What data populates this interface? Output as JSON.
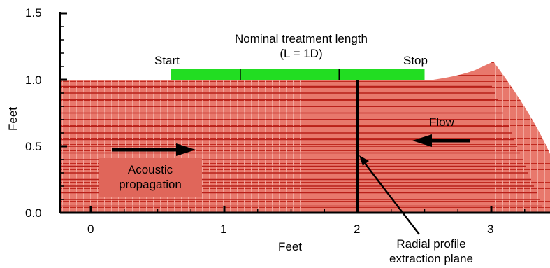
{
  "chart_data": {
    "type": "diagram",
    "xlabel": "Feet",
    "ylabel": "Feet",
    "xlim": [
      -0.25,
      3.6
    ],
    "ylim": [
      0.0,
      1.5
    ],
    "x_ticks": [
      "0",
      "1",
      "2",
      "3"
    ],
    "y_ticks": [
      "0.0",
      "0.5",
      "1.0",
      "1.5"
    ],
    "treatment_start_ft": 0.6,
    "treatment_stop_ft": 2.5,
    "treatment_dividers_ft": [
      1.12,
      1.86
    ],
    "extraction_plane_ft": 2.0,
    "colors": {
      "mesh": "#e0665a",
      "mesh_line": "#b8201a",
      "treatment_bar": "#22dd22",
      "plane": "#000000"
    }
  },
  "labels": {
    "treatment_title_line1": "Nominal treatment length",
    "treatment_title_line2": "(L = 1D)",
    "start": "Start",
    "stop": "Stop",
    "flow": "Flow",
    "acoustic_line1": "Acoustic",
    "acoustic_line2": "propagation",
    "radial_line1": "Radial profile",
    "radial_line2": "extraction plane"
  }
}
